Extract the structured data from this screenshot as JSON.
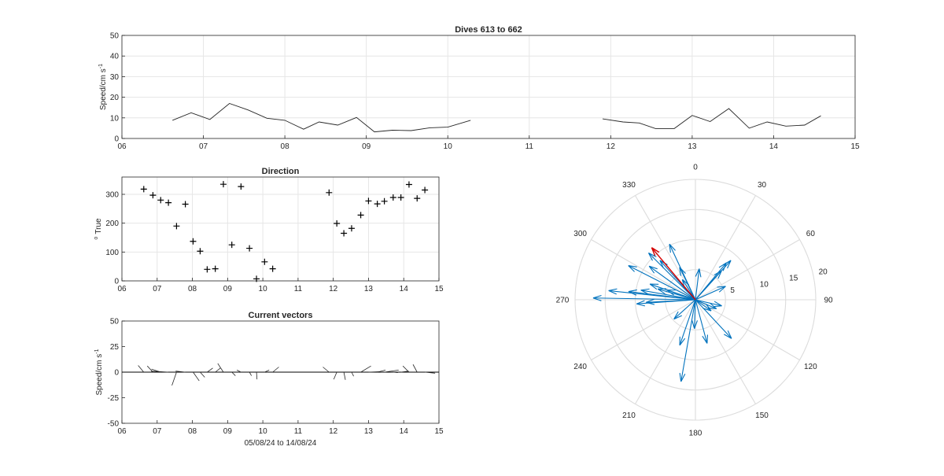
{
  "chart_data": [
    {
      "id": "speed",
      "type": "line",
      "title": "Dives 613 to 662",
      "ylabel": "Speed/cm s",
      "ylabel_sup": "-1",
      "xlabel": "",
      "xlim": [
        6,
        15
      ],
      "ylim": [
        0,
        50
      ],
      "xticks": [
        "06",
        "07",
        "08",
        "09",
        "10",
        "11",
        "12",
        "13",
        "14",
        "15"
      ],
      "yticks": [
        0,
        10,
        20,
        30,
        40,
        50
      ],
      "grid": true,
      "series": [
        {
          "x": [
            6.62,
            6.85,
            7.08,
            7.32,
            7.55,
            7.78,
            8.0,
            8.23,
            8.42,
            8.65,
            8.88,
            9.1,
            9.32,
            9.55,
            9.78,
            10.0,
            10.28
          ],
          "y": [
            8.8,
            12.5,
            9.2,
            17.0,
            13.8,
            9.8,
            8.8,
            4.5,
            8.0,
            6.5,
            10.2,
            3.2,
            4.0,
            3.8,
            5.2,
            5.5,
            8.8
          ]
        },
        {
          "x": [
            11.9,
            12.15,
            12.35,
            12.55,
            12.78,
            13.0,
            13.22,
            13.45,
            13.7,
            13.92,
            14.15,
            14.38,
            14.58
          ],
          "y": [
            9.5,
            8.0,
            7.5,
            4.8,
            4.8,
            11.2,
            8.2,
            14.5,
            5.0,
            8.0,
            6.0,
            6.5,
            11.0
          ]
        }
      ]
    },
    {
      "id": "direction",
      "type": "scatter",
      "title": "Direction",
      "ylabel": "True",
      "ylabel_sup": "o",
      "xlabel": "",
      "xlim": [
        6,
        15
      ],
      "ylim": [
        0,
        360
      ],
      "xticks": [
        "06",
        "07",
        "08",
        "09",
        "10",
        "11",
        "12",
        "13",
        "14",
        "15"
      ],
      "yticks": [
        0,
        100,
        200,
        300
      ],
      "grid": true,
      "x": [
        6.62,
        6.88,
        7.1,
        7.32,
        7.55,
        7.8,
        8.02,
        8.22,
        8.42,
        8.65,
        8.88,
        9.12,
        9.38,
        9.62,
        9.82,
        10.05,
        10.28,
        11.88,
        12.1,
        12.3,
        12.52,
        12.78,
        13.0,
        13.25,
        13.45,
        13.7,
        13.92,
        14.15,
        14.38,
        14.6
      ],
      "y": [
        318,
        297,
        280,
        271,
        190,
        266,
        137,
        103,
        40,
        42,
        335,
        125,
        327,
        113,
        7,
        66,
        42,
        306,
        199,
        165,
        182,
        228,
        277,
        267,
        276,
        289,
        289,
        334,
        286,
        315
      ]
    },
    {
      "id": "vectors",
      "type": "stick",
      "title": "Current vectors",
      "ylabel": "Speed/cm s",
      "ylabel_sup": "-1",
      "xlabel": "05/08/24 to 14/08/24",
      "xlim": [
        6,
        15
      ],
      "ylim": [
        -50,
        50
      ],
      "xticks": [
        "06",
        "07",
        "08",
        "09",
        "10",
        "11",
        "12",
        "13",
        "14",
        "15"
      ],
      "yticks": [
        50,
        25,
        0,
        -25,
        -50
      ],
      "grid": false,
      "x": [
        6.62,
        6.88,
        7.1,
        7.32,
        7.55,
        7.8,
        8.02,
        8.22,
        8.42,
        8.65,
        8.88,
        9.12,
        9.38,
        9.62,
        9.82,
        10.05,
        10.28,
        11.88,
        12.1,
        12.3,
        12.52,
        12.78,
        13.0,
        13.25,
        13.45,
        13.7,
        13.92,
        14.15,
        14.38,
        14.6
      ],
      "u": [
        -5.5,
        -5.5,
        -9,
        -17,
        -4.5,
        -9.5,
        6,
        4.5,
        5.5,
        5,
        -5.5,
        3.5,
        -4,
        2,
        0.5,
        4.5,
        6,
        -6,
        -3,
        1.5,
        2,
        10,
        11,
        8,
        14,
        4.5,
        7.5,
        -6,
        -4,
        10
      ],
      "v": [
        6.5,
        6,
        3,
        1,
        -13,
        1,
        -8.5,
        -5,
        4,
        4,
        8.5,
        -3.5,
        2,
        -3.5,
        -7,
        2,
        5,
        5,
        -7,
        -7.5,
        -4,
        6,
        0.5,
        2,
        2,
        -0.5,
        1,
        6,
        7.5,
        -1
      ]
    },
    {
      "id": "polar",
      "type": "compass",
      "title": "",
      "theta_ticks": [
        0,
        30,
        60,
        90,
        120,
        150,
        180,
        210,
        240,
        270,
        300,
        330
      ],
      "r_ticks": [
        5,
        10,
        15,
        20
      ],
      "rmax": 20,
      "series_color": "#0072BD",
      "mean_color": "#D40000",
      "mean": {
        "dir": 320,
        "speed": 11.3
      },
      "directions": [
        318,
        297,
        280,
        271,
        190,
        266,
        137,
        103,
        40,
        42,
        335,
        125,
        327,
        113,
        7,
        66,
        42,
        306,
        199,
        165,
        182,
        228,
        277,
        267,
        276,
        289,
        289,
        334,
        286,
        315
      ],
      "speeds": [
        8.8,
        12.5,
        9.2,
        17.0,
        13.8,
        9.8,
        8.8,
        4.5,
        8.0,
        6.5,
        10.2,
        3.2,
        4.0,
        3.8,
        5.2,
        5.5,
        8.8,
        9.5,
        8.0,
        7.5,
        4.8,
        4.8,
        11.2,
        8.2,
        14.5,
        5.0,
        8.0,
        6.0,
        6.5,
        11.0
      ]
    }
  ]
}
